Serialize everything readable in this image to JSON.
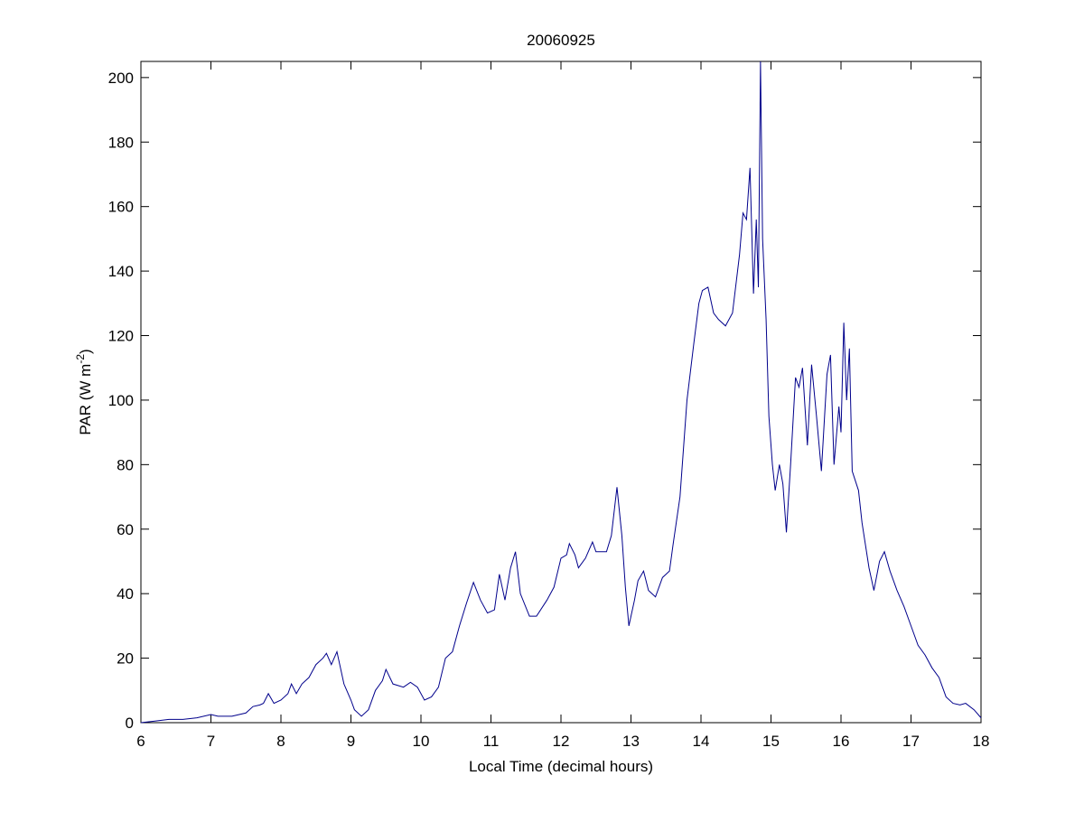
{
  "chart_data": {
    "type": "line",
    "title": "20060925",
    "x_label": "Local Time (decimal hours)",
    "y_label": {
      "text": "PAR (W m",
      "superscript": "-2",
      "suffix": ")"
    },
    "x": [
      6.0,
      6.2,
      6.4,
      6.6,
      6.8,
      7.0,
      7.1,
      7.3,
      7.5,
      7.6,
      7.7,
      7.75,
      7.82,
      7.9,
      8.0,
      8.1,
      8.15,
      8.22,
      8.3,
      8.4,
      8.5,
      8.6,
      8.65,
      8.72,
      8.8,
      8.9,
      9.0,
      9.05,
      9.15,
      9.25,
      9.35,
      9.45,
      9.5,
      9.6,
      9.75,
      9.85,
      9.95,
      10.05,
      10.15,
      10.25,
      10.35,
      10.45,
      10.55,
      10.65,
      10.75,
      10.85,
      10.95,
      11.05,
      11.12,
      11.2,
      11.28,
      11.35,
      11.42,
      11.55,
      11.65,
      11.8,
      11.9,
      12.0,
      12.08,
      12.12,
      12.2,
      12.25,
      12.35,
      12.45,
      12.5,
      12.65,
      12.72,
      12.8,
      12.87,
      12.92,
      12.97,
      13.05,
      13.1,
      13.18,
      13.25,
      13.35,
      13.45,
      13.55,
      13.6,
      13.7,
      13.8,
      13.9,
      13.97,
      14.02,
      14.1,
      14.18,
      14.25,
      14.35,
      14.45,
      14.55,
      14.6,
      14.65,
      14.7,
      14.75,
      14.79,
      14.82,
      14.85,
      14.88,
      14.93,
      14.97,
      15.02,
      15.06,
      15.12,
      15.17,
      15.22,
      15.28,
      15.35,
      15.4,
      15.45,
      15.52,
      15.58,
      15.65,
      15.72,
      15.8,
      15.85,
      15.9,
      15.97,
      16.0,
      16.04,
      16.08,
      16.12,
      16.16,
      16.25,
      16.3,
      16.4,
      16.47,
      16.55,
      16.62,
      16.7,
      16.8,
      16.9,
      17.0,
      17.1,
      17.2,
      17.3,
      17.4,
      17.5,
      17.6,
      17.7,
      17.78,
      17.9,
      18.0
    ],
    "series": [
      {
        "color": "#00008b",
        "values": [
          0,
          0.5,
          1,
          1,
          1.5,
          2.5,
          2,
          2,
          3,
          5,
          5.5,
          6,
          9,
          6,
          7,
          9,
          12,
          9,
          12,
          14,
          18,
          20,
          21.5,
          18,
          22,
          12,
          7,
          4,
          2,
          4,
          10,
          13,
          16.5,
          12,
          11,
          12.5,
          11,
          7,
          8,
          11,
          20,
          22,
          30,
          37,
          43.5,
          38,
          34,
          35,
          46,
          38,
          48,
          53,
          40,
          33,
          33,
          38,
          42,
          51,
          52,
          55.5,
          52,
          48,
          51,
          56,
          53,
          53,
          58,
          73,
          58,
          42,
          30,
          38,
          44,
          47,
          41,
          39,
          45,
          47,
          55,
          70,
          100,
          118,
          130,
          134,
          135,
          127,
          125,
          123,
          127,
          145,
          158,
          156,
          172,
          133,
          156,
          135,
          205,
          150,
          125,
          95,
          80,
          72,
          80,
          74,
          59,
          80,
          107,
          104,
          110,
          86,
          111,
          95,
          78,
          108,
          114,
          80,
          98,
          90,
          124,
          100,
          116,
          78,
          72,
          62,
          48,
          41,
          50,
          53,
          47,
          41,
          36,
          30,
          24,
          21,
          17,
          14,
          8,
          6,
          5.5,
          6,
          4,
          1.5
        ]
      }
    ],
    "xlim": [
      6,
      18
    ],
    "xticks": [
      6,
      7,
      8,
      9,
      10,
      11,
      12,
      13,
      14,
      15,
      16,
      17,
      18
    ],
    "ylim": [
      0,
      205
    ],
    "yticks": [
      0,
      20,
      40,
      60,
      80,
      100,
      120,
      140,
      160,
      180,
      200
    ]
  }
}
